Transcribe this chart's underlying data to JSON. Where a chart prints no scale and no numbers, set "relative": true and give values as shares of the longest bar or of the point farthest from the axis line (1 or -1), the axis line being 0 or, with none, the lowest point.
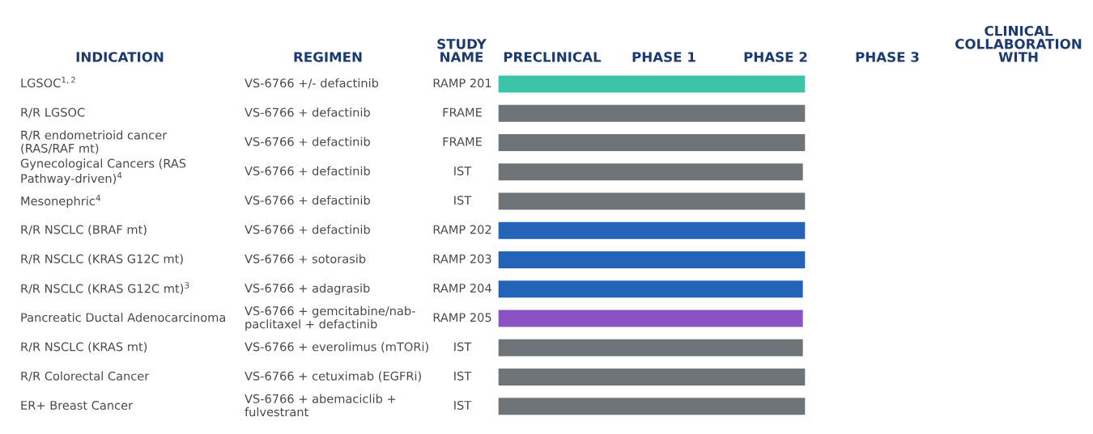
{
  "chart_data": {
    "type": "bar",
    "orientation": "horizontal",
    "ylabel": "INDICATION",
    "categories": [
      "LGSOC$^{1,2}$",
      "R/R LGSOC",
      "R/R endometrioid cancer\n(RAS/RAF mt)",
      "Gynecological Cancers (RAS\nPathway-driven)$^{4}$",
      "Mesonephric$^{4}$",
      "R/R NSCLC (BRAF mt)",
      "R/R NSCLC (KRAS G12C mt)",
      "R/R NSCLC (KRAS G12C mt)$^{3}$",
      "Pancreatic Ductal Adenocarcinoma",
      "R/R NSCLC (KRAS mt)",
      "R/R Colorectal Cancer",
      "ER+ Breast Cancer"
    ],
    "relative": true,
    "values": [
      1,
      1,
      1,
      0.993,
      1,
      1,
      1,
      0.993,
      0.993,
      0.993,
      1,
      1
    ],
    "colors": [
      "#3cc4a8",
      "#6e7478",
      "#6e7478",
      "#6e7478",
      "#6e7478",
      "#2363b8",
      "#2363b8",
      "#2363b8",
      "#8a52c2",
      "#6e7478",
      "#6e7478",
      "#6e7478"
    ],
    "annotations": [
      "REGIMEN",
      "STUDY\nNAME",
      "PRECLINICAL",
      "PHASE 1",
      "PHASE 2",
      "PHASE 3",
      "CLINICAL\nCOLLABORATION\nWITH",
      "VS-6766 +/- defactinib",
      "VS-6766 + defactinib",
      "VS-6766 + defactinib",
      "VS-6766 + defactinib",
      "VS-6766 + defactinib",
      "VS-6766 + defactinib",
      "VS-6766 + sotorasib",
      "VS-6766 + adagrasib",
      "VS-6766 + gemcitabine/nab-\npaclitaxel + defactinib",
      "VS-6766 + everolimus (mTORi)",
      "VS-6766 + cetuximab (EGFRi)",
      "VS-6766 + abemaciclib +\nfulvestrant",
      "RAMP 201",
      "FRAME",
      "FRAME",
      "IST",
      "IST",
      "RAMP 202",
      "RAMP 203",
      "RAMP 204",
      "RAMP 205",
      "IST",
      "IST",
      "IST"
    ]
  }
}
